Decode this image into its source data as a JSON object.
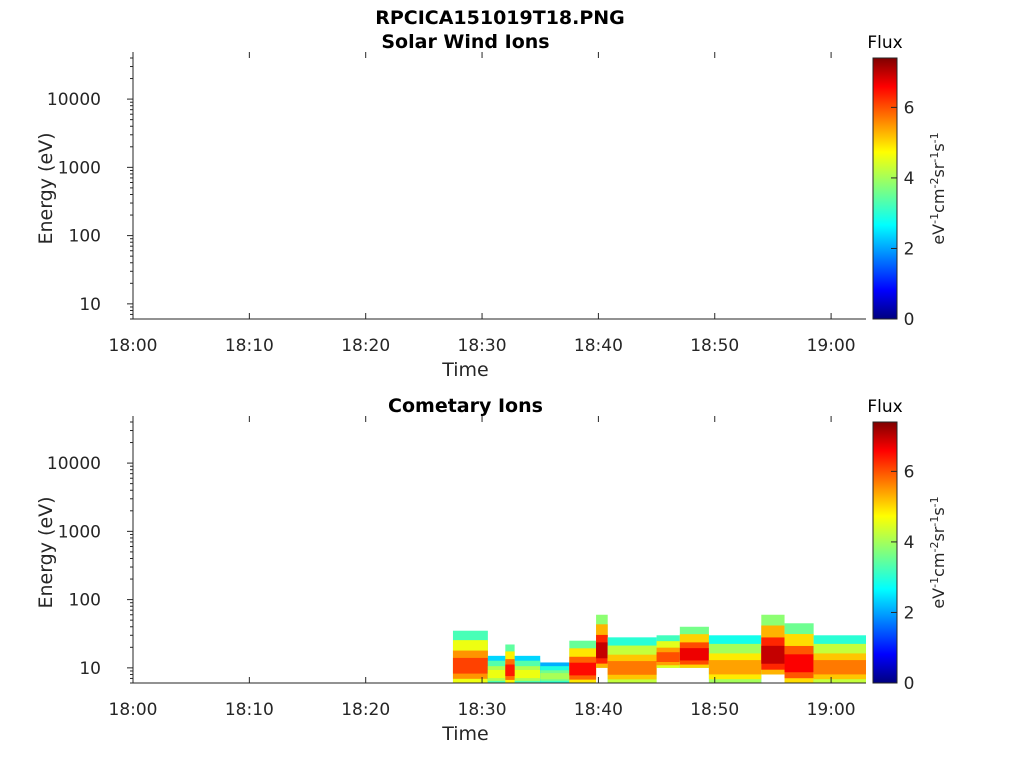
{
  "title": "RPCICA151019T18.PNG",
  "chart_data": [
    {
      "type": "heatmap",
      "title": "Solar Wind Ions",
      "xlabel": "Time",
      "ylabel": "Energy (eV)",
      "x_ticks": [
        "18:00",
        "18:10",
        "18:20",
        "18:30",
        "18:40",
        "18:50",
        "19:00"
      ],
      "xlim": [
        "18:00",
        "19:03"
      ],
      "y_scale": "log",
      "y_ticks": [
        10,
        100,
        1000,
        10000
      ],
      "y_tick_labels": [
        "10",
        "100",
        "1000",
        "10000"
      ],
      "ylim": [
        6,
        40000
      ],
      "colorbar": {
        "title": "Flux",
        "label": "eV-1cm-2sr-1s-1",
        "ticks": [
          "0",
          "2",
          "4",
          "6"
        ],
        "range": [
          0,
          7.4
        ],
        "colormap": "jet"
      },
      "regions": []
    },
    {
      "type": "heatmap",
      "title": "Cometary Ions",
      "xlabel": "Time",
      "ylabel": "Energy (eV)",
      "x_ticks": [
        "18:00",
        "18:10",
        "18:20",
        "18:30",
        "18:40",
        "18:50",
        "19:00"
      ],
      "xlim": [
        "18:00",
        "19:03"
      ],
      "y_scale": "log",
      "y_ticks": [
        10,
        100,
        1000,
        10000
      ],
      "y_tick_labels": [
        "10",
        "100",
        "1000",
        "10000"
      ],
      "ylim": [
        6,
        40000
      ],
      "colorbar": {
        "title": "Flux",
        "label": "eV-1cm-2sr-1s-1",
        "ticks": [
          "0",
          "2",
          "4",
          "6"
        ],
        "range": [
          0,
          7.4
        ],
        "colormap": "jet"
      },
      "regions": [
        {
          "t0": 27.5,
          "t1": 30.5,
          "e0": 6,
          "e1": 35,
          "flux": 6.0
        },
        {
          "t0": 30.5,
          "t1": 35.0,
          "e0": 6,
          "e1": 15,
          "flux": 4.5
        },
        {
          "t0": 32.0,
          "t1": 32.8,
          "e0": 6,
          "e1": 22,
          "flux": 6.3
        },
        {
          "t0": 35.0,
          "t1": 37.5,
          "e0": 6,
          "e1": 12,
          "flux": 4.0
        },
        {
          "t0": 37.5,
          "t1": 39.8,
          "e0": 6,
          "e1": 25,
          "flux": 6.4
        },
        {
          "t0": 39.8,
          "t1": 40.8,
          "e0": 10,
          "e1": 60,
          "flux": 6.9
        },
        {
          "t0": 40.8,
          "t1": 45.0,
          "e0": 6,
          "e1": 28,
          "flux": 5.6
        },
        {
          "t0": 45.0,
          "t1": 47.0,
          "e0": 10,
          "e1": 30,
          "flux": 5.9
        },
        {
          "t0": 47.0,
          "t1": 49.5,
          "e0": 10,
          "e1": 40,
          "flux": 6.6
        },
        {
          "t0": 49.5,
          "t1": 54.0,
          "e0": 6,
          "e1": 30,
          "flux": 5.3
        },
        {
          "t0": 54.0,
          "t1": 56.0,
          "e0": 8,
          "e1": 60,
          "flux": 6.9
        },
        {
          "t0": 56.0,
          "t1": 58.5,
          "e0": 6,
          "e1": 45,
          "flux": 6.5
        },
        {
          "t0": 58.5,
          "t1": 63.0,
          "e0": 6,
          "e1": 30,
          "flux": 5.6
        }
      ]
    }
  ]
}
